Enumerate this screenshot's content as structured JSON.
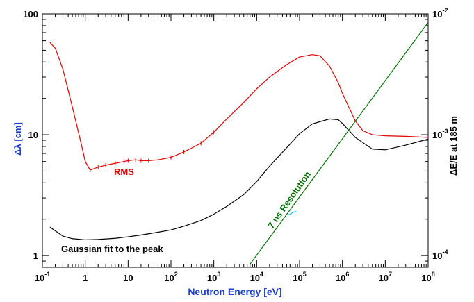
{
  "chart_data": {
    "type": "line",
    "title": "",
    "xlabel": "Neutron Energy [eV]",
    "ylabel_left": "Δλ [cm]",
    "ylabel_right": "ΔE/E at 185 m",
    "x_scale": "log",
    "y_scale": "log",
    "xlim": [
      0.1,
      100000000
    ],
    "ylim_left": [
      0.8,
      100
    ],
    "ylim_right": [
      8e-05,
      0.01
    ],
    "grid": false,
    "x_ticks": [
      {
        "value": 0.1,
        "base": "10",
        "exp": "-1"
      },
      {
        "value": 1,
        "base": "1",
        "exp": ""
      },
      {
        "value": 10,
        "base": "10",
        "exp": ""
      },
      {
        "value": 100,
        "base": "10",
        "exp": "2"
      },
      {
        "value": 1000,
        "base": "10",
        "exp": "3"
      },
      {
        "value": 10000,
        "base": "10",
        "exp": "4"
      },
      {
        "value": 100000,
        "base": "10",
        "exp": "5"
      },
      {
        "value": 1000000,
        "base": "10",
        "exp": "6"
      },
      {
        "value": 10000000,
        "base": "10",
        "exp": "7"
      },
      {
        "value": 100000000,
        "base": "10",
        "exp": "8"
      }
    ],
    "y_ticks_left": [
      {
        "value": 1,
        "label": "1"
      },
      {
        "value": 10,
        "label": "10"
      },
      {
        "value": 100,
        "label": "100"
      }
    ],
    "y_ticks_right": [
      {
        "value": 0.0001,
        "base": "10",
        "exp": "-4"
      },
      {
        "value": 0.001,
        "base": "10",
        "exp": "-3"
      },
      {
        "value": 0.01,
        "base": "10",
        "exp": "-2"
      }
    ],
    "series": [
      {
        "name": "RMS",
        "color": "#e00000",
        "axis": "left",
        "x": [
          0.15,
          0.2,
          0.3,
          0.5,
          0.8,
          1.0,
          1.3,
          2,
          3,
          5,
          8,
          10,
          15,
          20,
          30,
          50,
          100,
          200,
          500,
          1000,
          2000,
          5000,
          10000,
          20000,
          50000,
          100000,
          200000,
          300000,
          500000,
          800000,
          1000000,
          2000000,
          3000000,
          5000000,
          10000000,
          30000000,
          100000000
        ],
        "y": [
          58,
          52,
          35,
          17,
          8.5,
          6.0,
          5.1,
          5.4,
          5.6,
          5.8,
          6.0,
          6.1,
          6.2,
          6.1,
          6.1,
          6.2,
          6.5,
          7.2,
          8.5,
          10.5,
          13.5,
          18.5,
          24,
          30,
          38,
          44,
          46,
          45,
          37,
          27,
          22,
          13,
          10.8,
          10.0,
          9.8,
          9.7,
          9.5
        ]
      },
      {
        "name": "Gaussian fit to the peak",
        "color": "#000000",
        "axis": "left",
        "x": [
          0.15,
          0.3,
          0.5,
          1,
          2,
          5,
          10,
          20,
          50,
          100,
          200,
          500,
          1000,
          2000,
          5000,
          10000,
          20000,
          50000,
          100000,
          200000,
          500000,
          800000,
          1000000,
          2000000,
          5000000,
          10000000,
          30000000,
          100000000
        ],
        "y": [
          1.72,
          1.45,
          1.38,
          1.35,
          1.36,
          1.39,
          1.43,
          1.48,
          1.56,
          1.63,
          1.75,
          1.95,
          2.2,
          2.55,
          3.2,
          4.1,
          5.5,
          7.8,
          10.2,
          12.3,
          13.5,
          13.3,
          12.4,
          9.5,
          7.6,
          7.5,
          8.2,
          9.2
        ]
      },
      {
        "name": "7 ns Resolution",
        "color": "#007000",
        "axis": "right",
        "x": [
          7000,
          100000000
        ],
        "y": [
          8.5e-05,
          0.0085
        ]
      }
    ],
    "annotations": [
      {
        "text": "RMS",
        "color": "#e00000"
      },
      {
        "text": "Gaussian fit to the peak",
        "color": "#000000"
      },
      {
        "text": "7 ns Resolution",
        "color": "#007000"
      }
    ]
  }
}
